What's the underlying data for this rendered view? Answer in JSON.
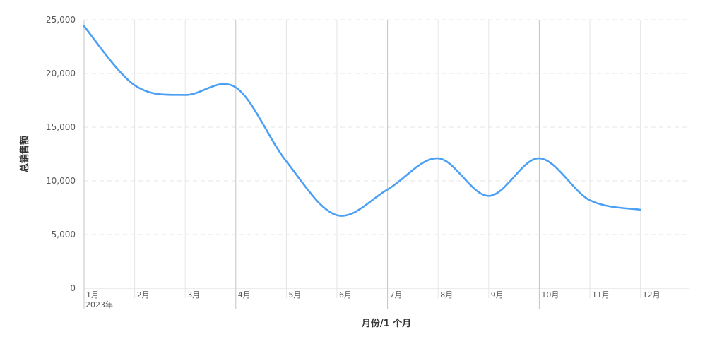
{
  "chart_data": {
    "type": "line",
    "title": "",
    "xlabel": "月份/1 个月",
    "ylabel": "总销售额",
    "year_label": "2023年",
    "categories": [
      "1月",
      "2月",
      "3月",
      "4月",
      "5月",
      "6月",
      "7月",
      "8月",
      "9月",
      "10月",
      "11月",
      "12月"
    ],
    "series": [
      {
        "values": [
          24400,
          18900,
          18000,
          18700,
          11800,
          6800,
          9200,
          12100,
          8600,
          12100,
          8200,
          7300
        ]
      }
    ],
    "ylim": [
      0,
      25000
    ],
    "yticks": [
      0,
      5000,
      10000,
      15000,
      20000,
      25000
    ],
    "ytick_labels": [
      "0",
      "5,000",
      "10,000",
      "15,000",
      "20,000",
      "25,000"
    ],
    "grid": {
      "horizontal": "dashed",
      "vertical": "solid"
    },
    "colors": {
      "line": "#4b9ff5",
      "grid": "#e6e6e6",
      "quarter_grid": "#c4c4c4"
    }
  }
}
